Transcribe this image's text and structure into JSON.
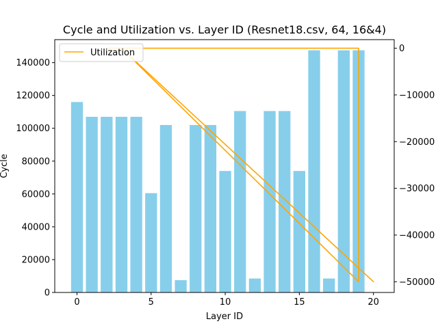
{
  "chart_data": {
    "type": "bar",
    "title": "Cycle and Utilization vs. Layer ID (Resnet18.csv, 64, 16&4)",
    "xlabel": "Layer ID",
    "ylabel": "Cycle",
    "y2label": "",
    "xlim": [
      -1.5,
      21.4
    ],
    "ylim": [
      0,
      154000
    ],
    "y2lim": [
      -52300,
      1840
    ],
    "x_ticks": [
      0,
      5,
      10,
      15,
      20
    ],
    "y_ticks": [
      0,
      20000,
      40000,
      60000,
      80000,
      100000,
      120000,
      140000
    ],
    "y2_ticks": [
      0,
      -10000,
      -20000,
      -30000,
      -40000,
      -50000
    ],
    "colors": {
      "bars": "#87ceeb",
      "line": "#ffa500"
    },
    "legend_position": "upper left",
    "series": [
      {
        "kind": "bar",
        "axis": "left",
        "x": [
          0,
          1,
          2,
          3,
          4,
          5,
          6,
          7,
          8,
          9,
          10,
          11,
          12,
          13,
          14,
          15,
          16,
          17,
          18,
          19
        ],
        "values": [
          116000,
          107000,
          107000,
          107000,
          107000,
          60500,
          102000,
          7500,
          102000,
          102000,
          74000,
          110500,
          8500,
          110500,
          110500,
          74000,
          147500,
          8500,
          147500,
          147500
        ]
      },
      {
        "kind": "line",
        "axis": "right",
        "name": "Utilization",
        "points": [
          [
            2,
            0
          ],
          [
            3,
            0
          ],
          [
            20,
            -50000
          ],
          [
            3,
            0
          ],
          [
            19,
            -50000
          ],
          [
            19,
            0
          ],
          [
            3,
            0
          ]
        ]
      }
    ],
    "legend": [
      "Utilization"
    ]
  }
}
